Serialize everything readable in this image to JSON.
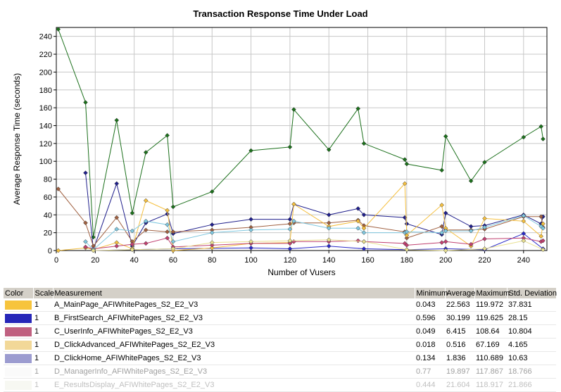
{
  "chart_data": {
    "type": "line",
    "title": "Transaction Response Time Under Load",
    "xlabel": "Number of Vusers",
    "ylabel": "Average Response Time (seconds)",
    "xlim": [
      0,
      252
    ],
    "ylim": [
      0,
      250
    ],
    "xticks": [
      0,
      20,
      40,
      60,
      80,
      100,
      120,
      140,
      160,
      180,
      200,
      220,
      240
    ],
    "yticks": [
      0,
      20,
      40,
      60,
      80,
      100,
      120,
      140,
      160,
      180,
      200,
      220,
      240
    ],
    "grid": true,
    "series": [
      {
        "color": "#1c701c",
        "points": [
          [
            1,
            248
          ],
          [
            15,
            166
          ],
          [
            19,
            15
          ],
          [
            31,
            146
          ],
          [
            39,
            42
          ],
          [
            46,
            110
          ],
          [
            57,
            129
          ],
          [
            60,
            49
          ],
          [
            80,
            66
          ],
          [
            100,
            112
          ],
          [
            120,
            116
          ],
          [
            122,
            158
          ],
          [
            140,
            113
          ],
          [
            155,
            159
          ],
          [
            158,
            120
          ],
          [
            179,
            102
          ],
          [
            180,
            97
          ],
          [
            198,
            90
          ],
          [
            200,
            128
          ],
          [
            213,
            78
          ],
          [
            220,
            99
          ],
          [
            240,
            127
          ],
          [
            249,
            139
          ],
          [
            250,
            125
          ]
        ]
      },
      {
        "color": "#1f1f8c",
        "points": [
          [
            15,
            87
          ],
          [
            19,
            1
          ],
          [
            31,
            75
          ],
          [
            39,
            5
          ],
          [
            46,
            31
          ],
          [
            57,
            41
          ],
          [
            60,
            19
          ],
          [
            80,
            29
          ],
          [
            100,
            35
          ],
          [
            120,
            35
          ],
          [
            122,
            52
          ],
          [
            140,
            40
          ],
          [
            155,
            47
          ],
          [
            158,
            40
          ],
          [
            179,
            37
          ],
          [
            180,
            30
          ],
          [
            198,
            18
          ],
          [
            200,
            42
          ],
          [
            213,
            27
          ],
          [
            220,
            28
          ],
          [
            240,
            40
          ],
          [
            249,
            30
          ],
          [
            250,
            38
          ]
        ]
      },
      {
        "color": "#2828c8",
        "points": [
          [
            19,
            0
          ],
          [
            39,
            1
          ],
          [
            60,
            2
          ],
          [
            100,
            3
          ],
          [
            120,
            2
          ],
          [
            140,
            5
          ],
          [
            158,
            2
          ],
          [
            180,
            1
          ],
          [
            200,
            2
          ],
          [
            220,
            1
          ],
          [
            240,
            19
          ],
          [
            250,
            2
          ]
        ]
      },
      {
        "color": "#a06040",
        "points": [
          [
            1,
            69
          ],
          [
            15,
            31
          ],
          [
            19,
            5
          ],
          [
            31,
            37
          ],
          [
            39,
            10
          ],
          [
            46,
            23
          ],
          [
            57,
            21
          ],
          [
            60,
            21
          ],
          [
            80,
            23
          ],
          [
            100,
            26
          ],
          [
            120,
            30
          ],
          [
            122,
            31
          ],
          [
            140,
            31
          ],
          [
            155,
            34
          ],
          [
            158,
            28
          ],
          [
            179,
            21
          ],
          [
            180,
            14
          ],
          [
            198,
            27
          ],
          [
            200,
            23
          ],
          [
            213,
            23
          ],
          [
            220,
            24
          ],
          [
            240,
            38
          ],
          [
            249,
            38
          ],
          [
            250,
            26
          ]
        ]
      },
      {
        "color": "#f5c040",
        "points": [
          [
            1,
            0
          ],
          [
            15,
            3
          ],
          [
            19,
            1
          ],
          [
            31,
            9
          ],
          [
            39,
            2
          ],
          [
            46,
            56
          ],
          [
            57,
            45
          ],
          [
            60,
            0
          ],
          [
            80,
            3
          ],
          [
            100,
            8
          ],
          [
            120,
            9
          ],
          [
            122,
            52
          ],
          [
            140,
            27
          ],
          [
            155,
            33
          ],
          [
            158,
            25
          ],
          [
            179,
            75
          ],
          [
            180,
            17
          ],
          [
            198,
            51
          ],
          [
            200,
            25
          ],
          [
            213,
            5
          ],
          [
            220,
            36
          ],
          [
            240,
            33
          ],
          [
            249,
            16
          ],
          [
            250,
            30
          ]
        ]
      },
      {
        "color": "#c04070",
        "points": [
          [
            15,
            4
          ],
          [
            19,
            2
          ],
          [
            31,
            5
          ],
          [
            39,
            7
          ],
          [
            46,
            8
          ],
          [
            57,
            14
          ],
          [
            60,
            4
          ],
          [
            80,
            6
          ],
          [
            100,
            8
          ],
          [
            120,
            8
          ],
          [
            122,
            10
          ],
          [
            140,
            10
          ],
          [
            155,
            11
          ],
          [
            158,
            10
          ],
          [
            179,
            8
          ],
          [
            180,
            6
          ],
          [
            198,
            9
          ],
          [
            200,
            10
          ],
          [
            213,
            7
          ],
          [
            220,
            13
          ],
          [
            240,
            14
          ],
          [
            249,
            10
          ],
          [
            250,
            11
          ]
        ]
      },
      {
        "color": "#80c8e0",
        "points": [
          [
            15,
            10
          ],
          [
            19,
            1
          ],
          [
            31,
            24
          ],
          [
            39,
            22
          ],
          [
            46,
            33
          ],
          [
            57,
            29
          ],
          [
            60,
            10
          ],
          [
            80,
            20
          ],
          [
            100,
            23
          ],
          [
            120,
            24
          ],
          [
            122,
            33
          ],
          [
            140,
            25
          ],
          [
            155,
            25
          ],
          [
            158,
            20
          ],
          [
            179,
            20
          ],
          [
            180,
            21
          ],
          [
            198,
            20
          ],
          [
            200,
            22
          ],
          [
            213,
            22
          ],
          [
            220,
            26
          ],
          [
            240,
            39
          ],
          [
            249,
            27
          ],
          [
            250,
            25
          ]
        ]
      },
      {
        "color": "#e8e090",
        "points": [
          [
            19,
            0
          ],
          [
            39,
            1
          ],
          [
            60,
            2
          ],
          [
            80,
            9
          ],
          [
            100,
            10
          ],
          [
            120,
            11
          ],
          [
            140,
            12
          ],
          [
            158,
            10
          ],
          [
            180,
            1
          ],
          [
            200,
            0
          ],
          [
            220,
            2
          ],
          [
            240,
            11
          ],
          [
            250,
            1
          ]
        ]
      }
    ],
    "table": {
      "headers": [
        "Color",
        "Scale",
        "Measurement",
        "Minimum",
        "Average",
        "Maximum",
        "Std. Deviation"
      ],
      "rows": [
        {
          "color": "#f7c43c",
          "scale": "1",
          "measurement": "A_MainPage_AFIWhitePages_S2_E2_V3",
          "min": "0.043",
          "avg": "22.563",
          "max": "119.972",
          "std": "37.831"
        },
        {
          "color": "#2626b8",
          "scale": "1",
          "measurement": "B_FirstSearch_AFIWhitePages_S2_E2_V3",
          "min": "0.596",
          "avg": "30.199",
          "max": "119.625",
          "std": "28.15"
        },
        {
          "color": "#c06080",
          "scale": "1",
          "measurement": "C_UserInfo_AFIWhitePages_S2_E2_V3",
          "min": "0.049",
          "avg": "6.415",
          "max": "108.64",
          "std": "10.804"
        },
        {
          "color": "#f2d898",
          "scale": "1",
          "measurement": "D_ClickAdvanced_AFIWhitePages_S2_E2_V3",
          "min": "0.018",
          "avg": "0.516",
          "max": "67.169",
          "std": "4.165"
        },
        {
          "color": "#9c9cd0",
          "scale": "1",
          "measurement": "D_ClickHome_AFIWhitePages_S2_E2_V3",
          "min": "0.134",
          "avg": "1.836",
          "max": "110.689",
          "std": "10.63"
        },
        {
          "color": "#f0f0f0",
          "scale": "1",
          "measurement": "D_ManagerInfo_AFIWhitePages_S2_E2_V3",
          "min": "0.77",
          "avg": "19.897",
          "max": "117.867",
          "std": "18.766"
        },
        {
          "color": "#d8dcc0",
          "scale": "1",
          "measurement": "E_ResultsDisplay_AFIWhitePages_S2_E2_V3",
          "min": "0.444",
          "avg": "21.604",
          "max": "118.917",
          "std": "21.866"
        }
      ]
    }
  }
}
